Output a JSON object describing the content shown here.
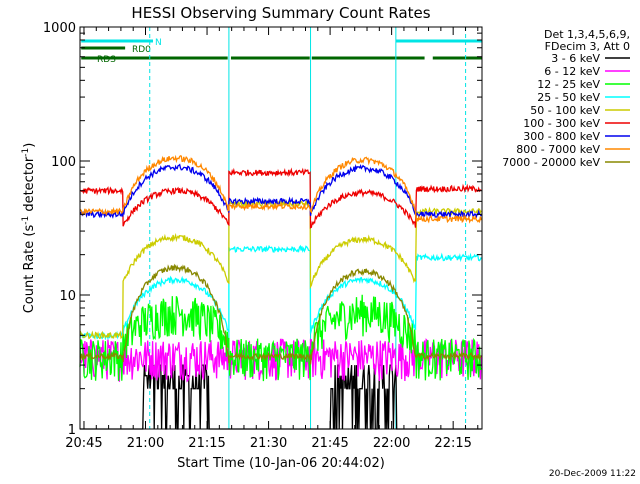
{
  "chart_data": {
    "type": "line",
    "title": "HESSI Observing Summary Count Rates",
    "xlabel": "Start Time (10-Jan-06 20:44:02)",
    "ylabel": "Count Rate (s⁻¹ detector⁻¹)",
    "ylabel_parts": {
      "prefix": "Count Rate (s",
      "sup1": "-1",
      "mid": " detector",
      "sup2": "-1",
      "suffix": ")"
    },
    "yscale": "log",
    "x_unit": "minutes after 20:44:02",
    "xlim": [
      0,
      98
    ],
    "ylim": [
      1,
      1000
    ],
    "x_ticks": [
      {
        "t": 0.97,
        "label": "20:45"
      },
      {
        "t": 15.97,
        "label": "21:00"
      },
      {
        "t": 30.97,
        "label": "21:15"
      },
      {
        "t": 45.97,
        "label": "21:30"
      },
      {
        "t": 60.97,
        "label": "21:45"
      },
      {
        "t": 75.97,
        "label": "22:00"
      },
      {
        "t": 90.97,
        "label": "22:15"
      }
    ],
    "y_ticks": [
      {
        "v": 1,
        "label": "1"
      },
      {
        "v": 10,
        "label": "10"
      },
      {
        "v": 100,
        "label": "100"
      },
      {
        "v": 1000,
        "label": "1000"
      }
    ],
    "legend_header": [
      "Det 1,3,4,5,6,9,",
      "FDecim 3, Att 0"
    ],
    "legend_position": "right",
    "timestamp": "20-Dec-2009 11:22",
    "series": [
      {
        "name": "3 - 6 keV",
        "color": "#000000"
      },
      {
        "name": "6 - 12 keV",
        "color": "#ff00ff"
      },
      {
        "name": "12 - 25 keV",
        "color": "#00ff00"
      },
      {
        "name": "25 - 50 keV",
        "color": "#00ffff"
      },
      {
        "name": "50 - 100 keV",
        "color": "#cccc00"
      },
      {
        "name": "100 - 300 keV",
        "color": "#ee0000"
      },
      {
        "name": "300 - 800 keV",
        "color": "#0000ee"
      },
      {
        "name": "800 - 7000 keV",
        "color": "#ff8800"
      },
      {
        "name": "7000 - 20000 keV",
        "color": "#888800"
      }
    ],
    "flag_bars": [
      {
        "label": "N",
        "color": "#00e5e5",
        "segments": [
          [
            0.3,
            17.8
          ],
          [
            77.0,
            98.0
          ]
        ]
      },
      {
        "label": "RD0",
        "color": "#006600",
        "segments": [
          [
            0.3,
            11.0
          ]
        ]
      },
      {
        "label": "RDS",
        "color": "#006600",
        "segments": [
          [
            0.3,
            36.0
          ],
          [
            36.8,
            56.0
          ],
          [
            56.5,
            84.0
          ],
          [
            86.0,
            98.0
          ]
        ]
      }
    ],
    "night_lines": [
      0,
      17,
      36.3,
      56.2,
      77.0,
      94.0
    ],
    "night_lines_dashed": [
      17,
      94.0
    ],
    "segments": [
      {
        "t0": 0,
        "t1": 10.5,
        "values": {
          "3-6": 1,
          "6-12": 3.5,
          "12-25": 3.5,
          "25-50": 5,
          "50-100": 5,
          "100-300": 60,
          "300-800": 40,
          "800-7000": 42,
          "7000-20000": 3.5
        }
      },
      {
        "t0": 10.5,
        "t1": 36.3,
        "values": {
          "100-300": 60,
          "300-800": 90,
          "800-7000": 105,
          "50-100": 27,
          "25-50": 13,
          "7000-20000": 16,
          "12-25": 7.5,
          "6-12": 3.5,
          "3-6": 2.5
        }
      },
      {
        "t0": 36.3,
        "t1": 56.2,
        "values": {
          "100-300": 82,
          "300-800": 50,
          "800-7000": 46,
          "50-100": 48,
          "25-50": 22,
          "12-25": 3.5,
          "6-12": 3.5,
          "7000-20000": 3.5,
          "3-6": 1
        }
      },
      {
        "t0": 56.2,
        "t1": 82.0,
        "values": {
          "100-300": 58,
          "300-800": 88,
          "800-7000": 102,
          "50-100": 26,
          "25-50": 13,
          "7000-20000": 15,
          "12-25": 7.5,
          "6-12": 3.5,
          "3-6": 2.5
        }
      },
      {
        "t0": 82.0,
        "t1": 98.0,
        "values": {
          "100-300": 62,
          "300-800": 40,
          "800-7000": 37,
          "50-100": 42,
          "25-50": 19,
          "12-25": 3.5,
          "6-12": 3.5,
          "7000-20000": 3.5,
          "3-6": 1
        }
      }
    ]
  }
}
